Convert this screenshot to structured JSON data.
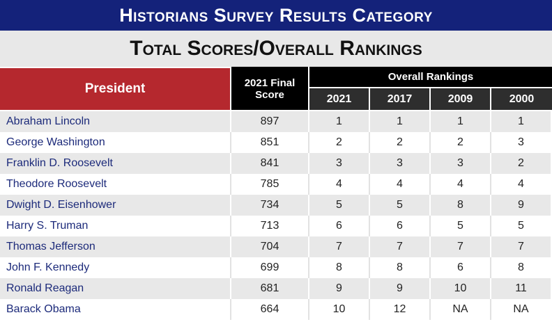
{
  "title": "Historians Survey Results Category",
  "subtitle": "Total Scores/Overall Rankings",
  "header": {
    "president": "President",
    "final_score": "2021 Final Score",
    "overall_rankings": "Overall Rankings",
    "years": [
      "2021",
      "2017",
      "2009",
      "2000"
    ]
  },
  "colors": {
    "banner": "#14227a",
    "president_header": "#b5282e",
    "name_text": "#1c2a7a"
  },
  "rows": [
    {
      "name": "Abraham Lincoln",
      "score": "897",
      "r2021": "1",
      "r2017": "1",
      "r2009": "1",
      "r2000": "1"
    },
    {
      "name": "George Washington",
      "score": "851",
      "r2021": "2",
      "r2017": "2",
      "r2009": "2",
      "r2000": "3"
    },
    {
      "name": "Franklin D. Roosevelt",
      "score": "841",
      "r2021": "3",
      "r2017": "3",
      "r2009": "3",
      "r2000": "2"
    },
    {
      "name": "Theodore Roosevelt",
      "score": "785",
      "r2021": "4",
      "r2017": "4",
      "r2009": "4",
      "r2000": "4"
    },
    {
      "name": "Dwight D. Eisenhower",
      "score": "734",
      "r2021": "5",
      "r2017": "5",
      "r2009": "8",
      "r2000": "9"
    },
    {
      "name": "Harry S. Truman",
      "score": "713",
      "r2021": "6",
      "r2017": "6",
      "r2009": "5",
      "r2000": "5"
    },
    {
      "name": "Thomas Jefferson",
      "score": "704",
      "r2021": "7",
      "r2017": "7",
      "r2009": "7",
      "r2000": "7"
    },
    {
      "name": "John F. Kennedy",
      "score": "699",
      "r2021": "8",
      "r2017": "8",
      "r2009": "6",
      "r2000": "8"
    },
    {
      "name": "Ronald Reagan",
      "score": "681",
      "r2021": "9",
      "r2017": "9",
      "r2009": "10",
      "r2000": "11"
    },
    {
      "name": "Barack Obama",
      "score": "664",
      "r2021": "10",
      "r2017": "12",
      "r2009": "NA",
      "r2000": "NA"
    }
  ]
}
